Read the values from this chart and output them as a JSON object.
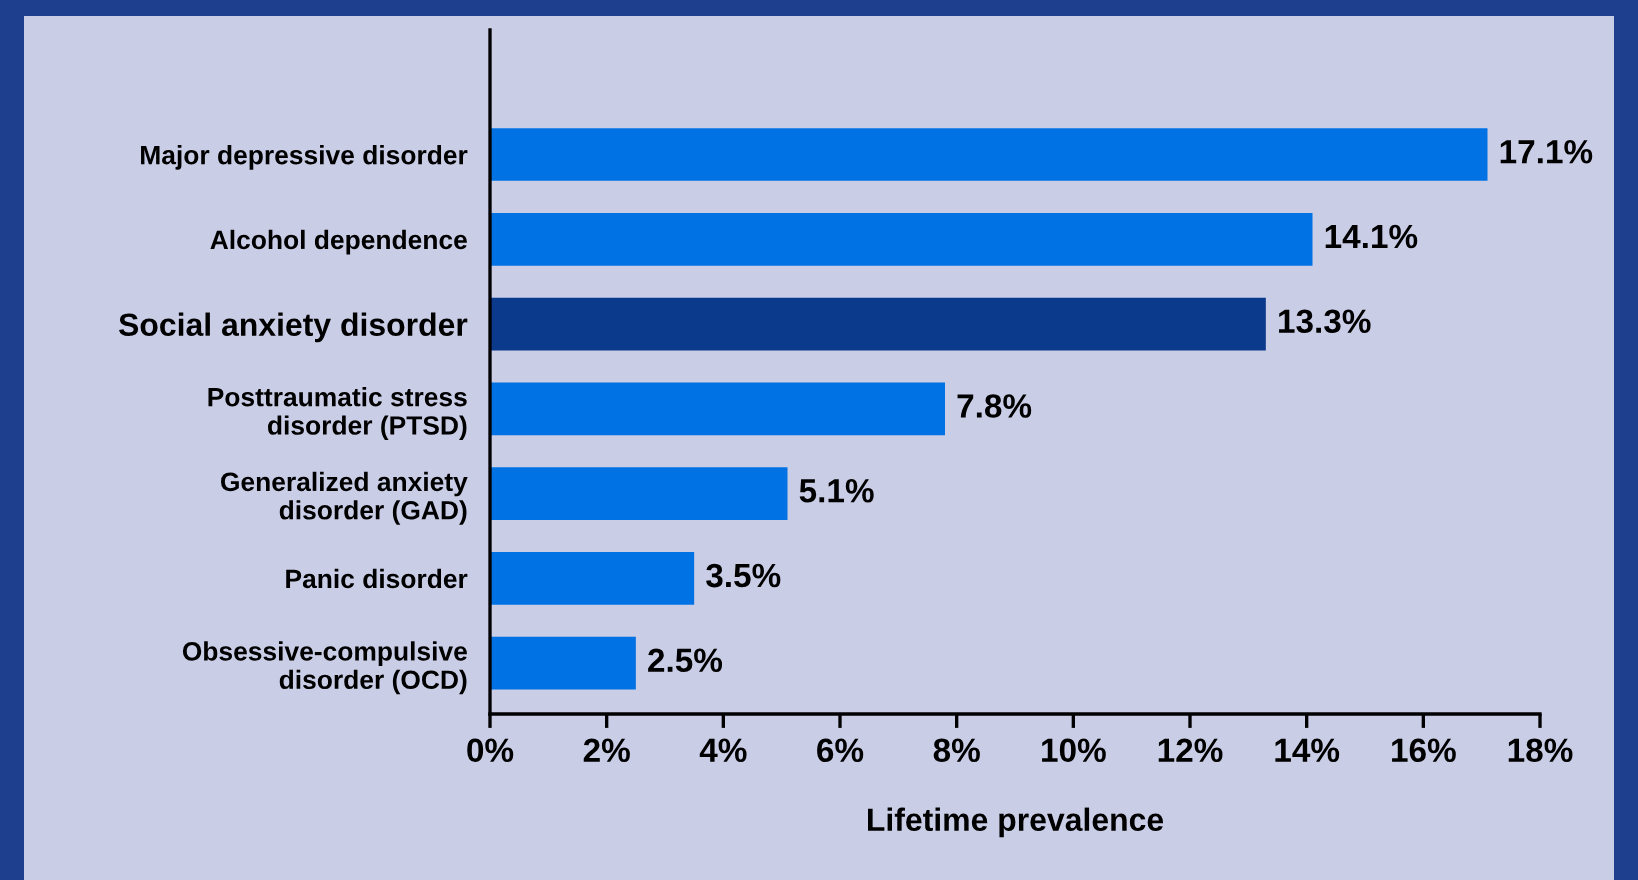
{
  "chart_data": {
    "type": "bar",
    "orientation": "horizontal",
    "xlabel": "Lifetime prevalence",
    "categories": [
      "Major depressive disorder",
      "Alcohol dependence",
      "Social anxiety disorder",
      "Posttraumatic stress\ndisorder (PTSD)",
      "Generalized anxiety\ndisorder (GAD)",
      "Panic disorder",
      "Obsessive-compulsive\ndisorder (OCD)"
    ],
    "values": [
      17.1,
      14.1,
      13.3,
      7.8,
      5.1,
      3.5,
      2.5
    ],
    "value_labels": [
      "17.1%",
      "14.1%",
      "13.3%",
      "7.8%",
      "5.1%",
      "3.5%",
      "2.5%"
    ],
    "colors": [
      "#0072e3",
      "#0072e3",
      "#0b3a8c",
      "#0072e3",
      "#0072e3",
      "#0072e3",
      "#0072e3"
    ],
    "xlim": [
      0,
      18
    ],
    "xticks": [
      {
        "value": 0,
        "label": "0%"
      },
      {
        "value": 2,
        "label": "2%"
      },
      {
        "value": 4,
        "label": "4%"
      },
      {
        "value": 6,
        "label": "6%"
      },
      {
        "value": 8,
        "label": "8%"
      },
      {
        "value": 10,
        "label": "10%"
      },
      {
        "value": 12,
        "label": "12%"
      },
      {
        "value": 14,
        "label": "14%"
      },
      {
        "value": 16,
        "label": "16%"
      },
      {
        "value": 18,
        "label": "18%"
      }
    ],
    "grid": false
  }
}
